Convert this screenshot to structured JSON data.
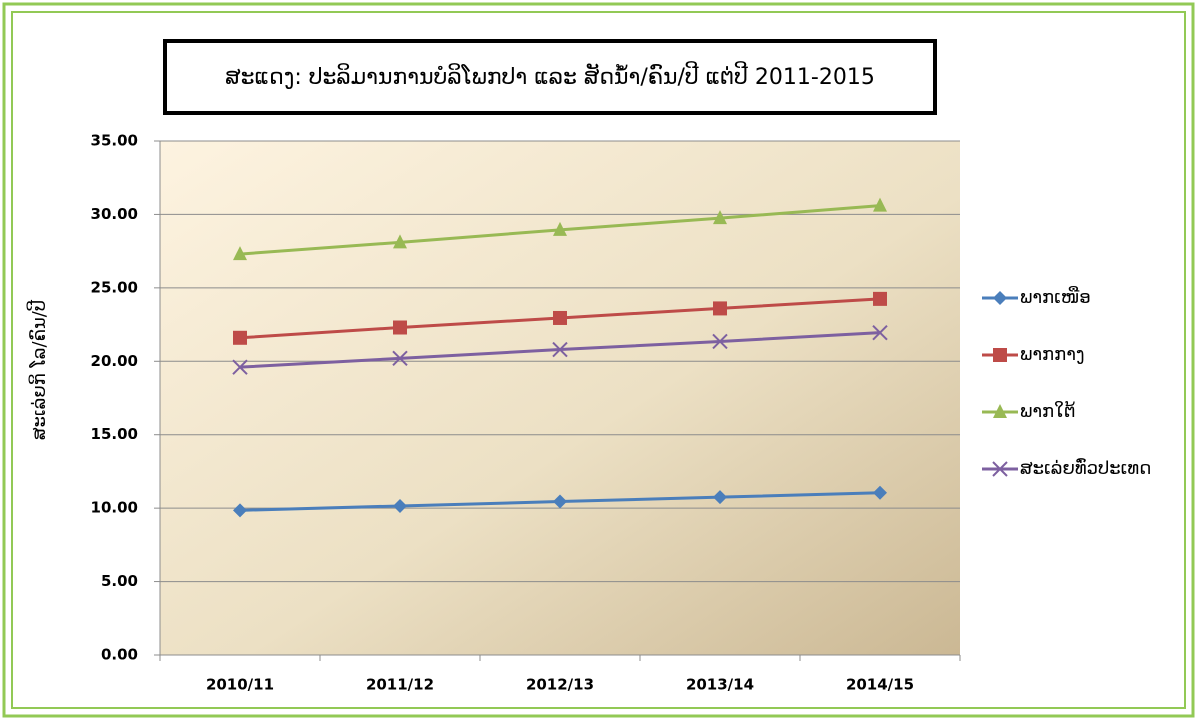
{
  "chart_data": {
    "type": "line",
    "title": "ສະແດງ: ປະລິມານການບໍລິໂພກປາ ແລະ ສັດນ້ຳ/ຄົນ/ປີ ແຕ່ປີ 2011-2015",
    "y_label": "ສະເລ່ຍກິ ໂລ/ຄົນ/ປີ",
    "categories": [
      "2010/11",
      "2011/12",
      "2012/13",
      "2013/14",
      "2014/15"
    ],
    "series": [
      {
        "name": "ພາກເໜືອ",
        "color": "#4a7ebb",
        "marker": "diamond",
        "values": [
          9.85,
          10.15,
          10.45,
          10.75,
          11.05
        ]
      },
      {
        "name": "ພາກກາງ",
        "color": "#be4b48",
        "marker": "square",
        "values": [
          21.6,
          22.3,
          22.95,
          23.6,
          24.25
        ]
      },
      {
        "name": "ພາກໃຕ້",
        "color": "#98b954",
        "marker": "triangle",
        "values": [
          27.3,
          28.1,
          28.95,
          29.75,
          30.6
        ]
      },
      {
        "name": "ສະເລ່ຍທົ່ວປະເທດ",
        "color": "#7d60a0",
        "marker": "x",
        "values": [
          19.6,
          20.2,
          20.8,
          21.35,
          21.95
        ]
      }
    ],
    "ylim": [
      0,
      35
    ],
    "yticks": [
      {
        "value": 0,
        "label": "0.00"
      },
      {
        "value": 5,
        "label": "5.00"
      },
      {
        "value": 10,
        "label": "10.00"
      },
      {
        "value": 15,
        "label": "15.00"
      },
      {
        "value": 20,
        "label": "20.00"
      },
      {
        "value": 25,
        "label": "25.00"
      },
      {
        "value": 30,
        "label": "30.00"
      },
      {
        "value": 35,
        "label": "35.00"
      }
    ],
    "grid": true,
    "legend": "right"
  }
}
